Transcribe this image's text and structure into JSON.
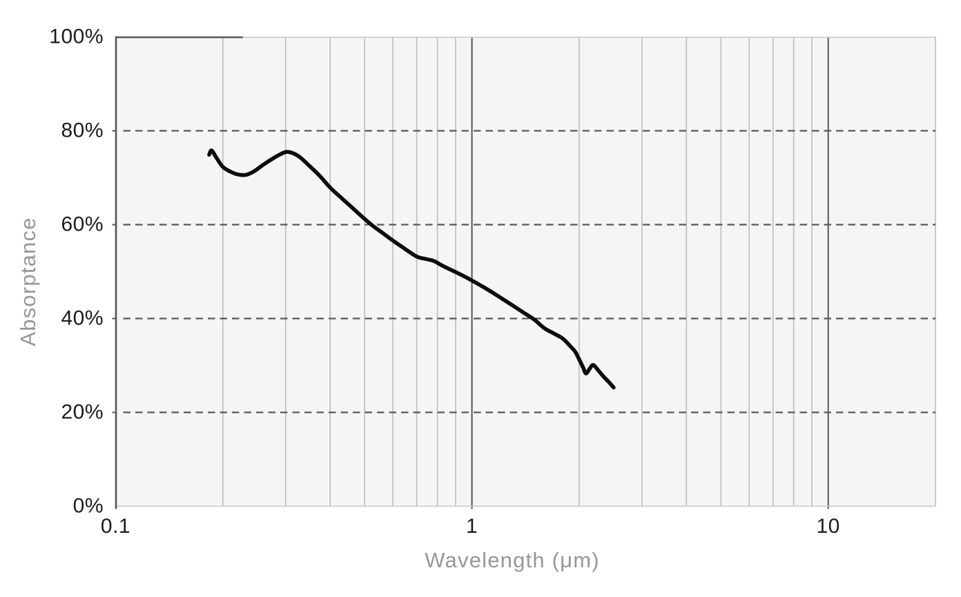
{
  "page": {
    "background_color": "#ffffff"
  },
  "chart_data": {
    "type": "line",
    "title": "",
    "xlabel": "Wavelength (μm)",
    "ylabel": "Absorptance",
    "x_scale": "log",
    "xlim": [
      0.1,
      20
    ],
    "ylim": [
      0,
      100
    ],
    "grid": "on",
    "legend": "none",
    "x_tick_labels": [
      {
        "value": 0.1,
        "label": "0.1"
      },
      {
        "value": 1,
        "label": "1"
      },
      {
        "value": 10,
        "label": "10"
      }
    ],
    "y_tick_labels": [
      {
        "value": 100,
        "label": "100%"
      },
      {
        "value": 80,
        "label": "80%"
      },
      {
        "value": 60,
        "label": "60%"
      },
      {
        "value": 40,
        "label": "40%"
      },
      {
        "value": 20,
        "label": "20%"
      },
      {
        "value": 0,
        "label": "0%"
      }
    ],
    "x_major_gridlines": [
      1,
      10
    ],
    "x_minor_gridlines": [
      0.2,
      0.3,
      0.4,
      0.5,
      0.6,
      0.7,
      0.8,
      0.9,
      2,
      3,
      4,
      5,
      6,
      7,
      8,
      9,
      20
    ],
    "y_dashed_gridlines": [
      80,
      60,
      40,
      20
    ],
    "series": [
      {
        "name": "Absorptance",
        "color": "#0d0d0d",
        "points": [
          [
            0.183,
            74.9
          ],
          [
            0.186,
            75.8
          ],
          [
            0.192,
            74.2
          ],
          [
            0.2,
            72.3
          ],
          [
            0.21,
            71.3
          ],
          [
            0.22,
            70.7
          ],
          [
            0.232,
            70.6
          ],
          [
            0.245,
            71.4
          ],
          [
            0.26,
            72.8
          ],
          [
            0.275,
            74.0
          ],
          [
            0.29,
            75.0
          ],
          [
            0.302,
            75.5
          ],
          [
            0.315,
            75.2
          ],
          [
            0.33,
            74.3
          ],
          [
            0.35,
            72.5
          ],
          [
            0.375,
            70.3
          ],
          [
            0.4,
            67.9
          ],
          [
            0.43,
            65.7
          ],
          [
            0.46,
            63.7
          ],
          [
            0.5,
            61.2
          ],
          [
            0.53,
            59.6
          ],
          [
            0.56,
            58.3
          ],
          [
            0.6,
            56.6
          ],
          [
            0.65,
            54.8
          ],
          [
            0.7,
            53.2
          ],
          [
            0.74,
            52.7
          ],
          [
            0.78,
            52.3
          ],
          [
            0.82,
            51.4
          ],
          [
            0.86,
            50.6
          ],
          [
            0.9,
            49.9
          ],
          [
            0.95,
            49.0
          ],
          [
            1.0,
            48.1
          ],
          [
            1.1,
            46.3
          ],
          [
            1.2,
            44.5
          ],
          [
            1.3,
            42.8
          ],
          [
            1.4,
            41.2
          ],
          [
            1.5,
            39.7
          ],
          [
            1.6,
            37.9
          ],
          [
            1.7,
            36.8
          ],
          [
            1.8,
            35.7
          ],
          [
            1.9,
            33.9
          ],
          [
            1.95,
            32.9
          ],
          [
            2.0,
            31.3
          ],
          [
            2.05,
            29.6
          ],
          [
            2.09,
            28.3
          ],
          [
            2.14,
            29.3
          ],
          [
            2.19,
            30.1
          ],
          [
            2.26,
            29.0
          ],
          [
            2.33,
            27.8
          ],
          [
            2.42,
            26.5
          ],
          [
            2.5,
            25.3
          ]
        ]
      }
    ],
    "style": {
      "plot_bg": "#f5f5f6",
      "minor_grid_color": "#bcbcbf",
      "major_grid_color": "#545457",
      "dashed_grid_color": "#58585b",
      "axis_line_color": "#545457",
      "top_border_dark_color": "#58585b",
      "light_border_color": "#c8c8cb",
      "tick_label_color": "#1c1c1c",
      "axis_title_color": "#97979a"
    }
  }
}
